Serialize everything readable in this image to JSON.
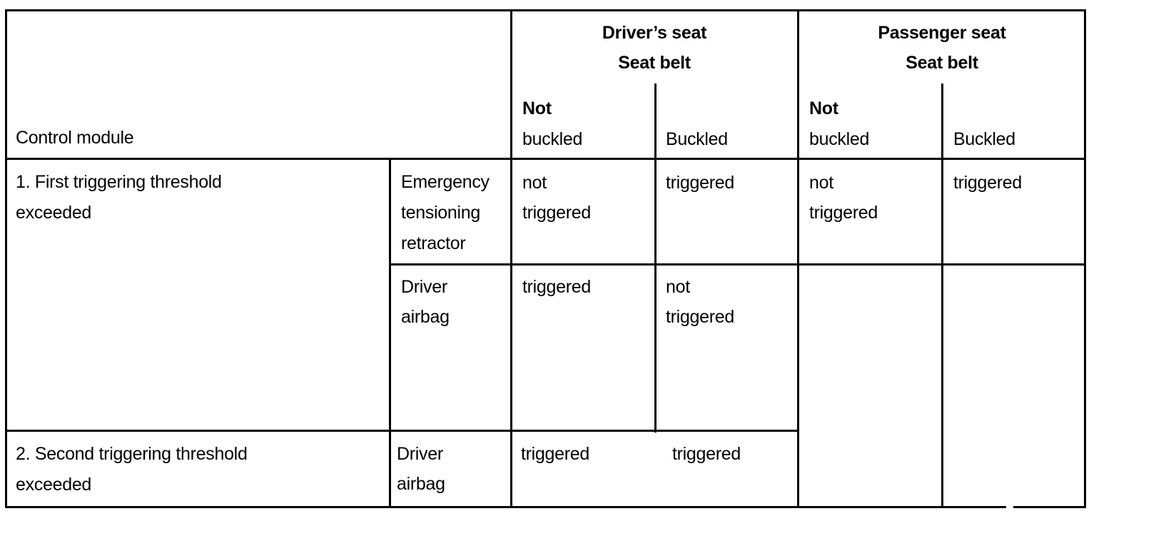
{
  "header": {
    "control_module": "Control module",
    "driver_group": [
      "Driver’s seat",
      "Seat belt"
    ],
    "passenger_group": [
      "Passenger seat",
      "Seat belt"
    ],
    "driver_not_buckled": [
      "Not",
      "buckled"
    ],
    "driver_buckled": "Buckled",
    "passenger_not_buckled": [
      "Not",
      "buckled"
    ],
    "passenger_buckled": "Buckled"
  },
  "rows": [
    {
      "threshold": [
        "1. First triggering threshold",
        "exceeded"
      ],
      "component": [
        "Emergency",
        "tensioning",
        "retractor"
      ],
      "driver_not_buckled": [
        "not",
        "triggered"
      ],
      "driver_buckled": [
        "triggered"
      ],
      "passenger_not_buckled": [
        "not",
        "triggered"
      ],
      "passenger_buckled": [
        "triggered"
      ]
    },
    {
      "component": [
        "Driver",
        "airbag"
      ],
      "driver_not_buckled": [
        "triggered"
      ],
      "driver_buckled": [
        "not",
        "triggered"
      ]
    },
    {
      "threshold": [
        "2. Second triggering threshold",
        "exceeded"
      ],
      "component": [
        "Driver",
        "airbag"
      ],
      "driver_not_buckled": [
        "triggered"
      ],
      "driver_buckled": [
        "triggered"
      ]
    }
  ]
}
